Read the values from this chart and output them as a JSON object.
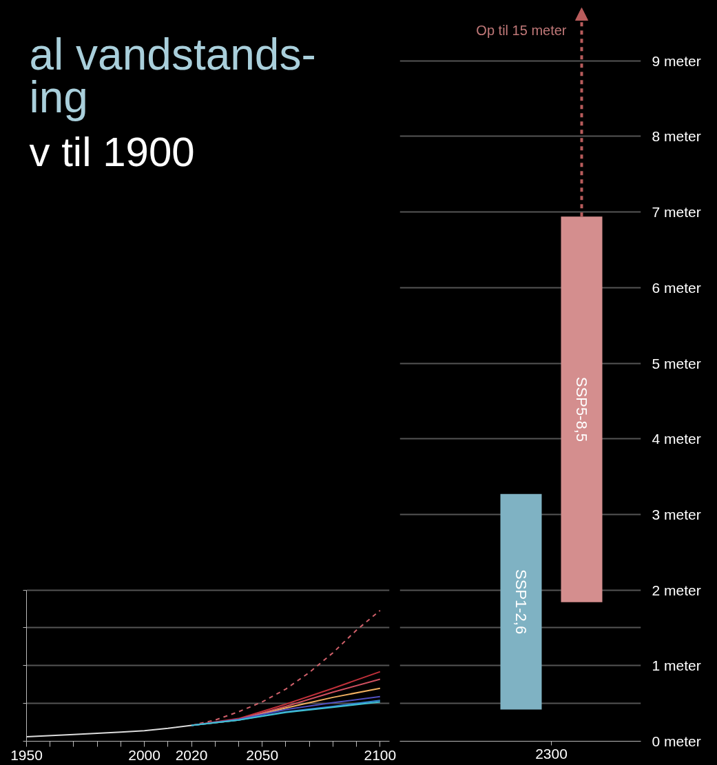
{
  "chart_data": [
    {
      "type": "line",
      "title": "al vandstands-\ning",
      "subtitle": "v til 1900",
      "xlim": [
        1950,
        2104
      ],
      "ylim": [
        0,
        9.8
      ],
      "xticks": [
        1950,
        {
          "value": 1960,
          "label": null
        },
        {
          "value": 1970,
          "label": null
        },
        {
          "value": 1980,
          "label": null
        },
        {
          "value": 1990,
          "label": null
        },
        2000,
        {
          "value": 2010,
          "label": null
        },
        2020,
        {
          "value": 2030,
          "label": null
        },
        {
          "value": 2040,
          "label": null
        },
        2050,
        {
          "value": 2060,
          "label": null
        },
        {
          "value": 2070,
          "label": null
        },
        {
          "value": 2080,
          "label": null
        },
        {
          "value": 2090,
          "label": null
        },
        2100
      ],
      "yticks": [
        {
          "value": 0,
          "label": null
        },
        {
          "value": 0.5,
          "label": null
        },
        {
          "value": 1,
          "label": null
        },
        {
          "value": 1.5,
          "label": null
        },
        {
          "value": 2,
          "label": null
        }
      ],
      "tick_labels": "x",
      "grid": "y",
      "series": [
        {
          "color": "#dddddd",
          "x": [
            1950,
            1970,
            1990,
            2000,
            2010,
            2020
          ],
          "values": [
            0.06,
            0.09,
            0.12,
            0.14,
            0.17,
            0.21
          ]
        },
        {
          "color": "#d0606a",
          "line_style": "dashed",
          "x": [
            2020,
            2030,
            2040,
            2050,
            2060,
            2070,
            2080,
            2090,
            2100
          ],
          "values": [
            0.21,
            0.28,
            0.39,
            0.52,
            0.69,
            0.91,
            1.17,
            1.47,
            1.73
          ]
        },
        {
          "color": "#c0303a",
          "x": [
            2020,
            2040,
            2060,
            2080,
            2100
          ],
          "values": [
            0.21,
            0.3,
            0.49,
            0.7,
            0.92
          ]
        },
        {
          "color": "#d05060",
          "x": [
            2020,
            2040,
            2060,
            2080,
            2100
          ],
          "values": [
            0.21,
            0.29,
            0.46,
            0.65,
            0.82
          ]
        },
        {
          "color": "#f0b060",
          "x": [
            2020,
            2040,
            2060,
            2080,
            2100
          ],
          "values": [
            0.21,
            0.28,
            0.44,
            0.58,
            0.7
          ]
        },
        {
          "color": "#5050c0",
          "x": [
            2020,
            2040,
            2060,
            2080,
            2100
          ],
          "values": [
            0.21,
            0.29,
            0.42,
            0.51,
            0.59
          ]
        },
        {
          "color": "#3080d0",
          "x": [
            2020,
            2040,
            2060,
            2080,
            2100
          ],
          "values": [
            0.21,
            0.28,
            0.39,
            0.46,
            0.54
          ]
        },
        {
          "color": "#40c0d0",
          "x": [
            2020,
            2040,
            2060,
            2080,
            2100
          ],
          "values": [
            0.21,
            0.28,
            0.38,
            0.45,
            0.52
          ]
        }
      ]
    },
    {
      "type": "bar",
      "categories": [
        "2300"
      ],
      "ylim": [
        0,
        9.8
      ],
      "yticks": [
        {
          "value": 0,
          "label": "0 meter"
        },
        {
          "value": 0.5,
          "label": null
        },
        {
          "value": 1,
          "label": "1 meter"
        },
        {
          "value": 1.5,
          "label": null
        },
        {
          "value": 2,
          "label": "2 meter"
        },
        {
          "value": 3,
          "label": "3 meter"
        },
        {
          "value": 4,
          "label": "4 meter"
        },
        {
          "value": 5,
          "label": "5 meter"
        },
        {
          "value": 6,
          "label": "6 meter"
        },
        {
          "value": 7,
          "label": "7 meter"
        },
        {
          "value": 8,
          "label": "8 meter"
        },
        {
          "value": 9,
          "label": "9 meter"
        }
      ],
      "grid": "y",
      "series": [
        {
          "name": "SSP1-2,6",
          "color": "#7fb2c3",
          "base": [
            0.42
          ],
          "values": [
            2.85
          ]
        },
        {
          "name": "SSP5-8,5",
          "color": "#d48e8e",
          "base": [
            1.84
          ],
          "values": [
            5.1
          ]
        }
      ],
      "annotations": [
        "Op til 15 meter"
      ]
    }
  ]
}
